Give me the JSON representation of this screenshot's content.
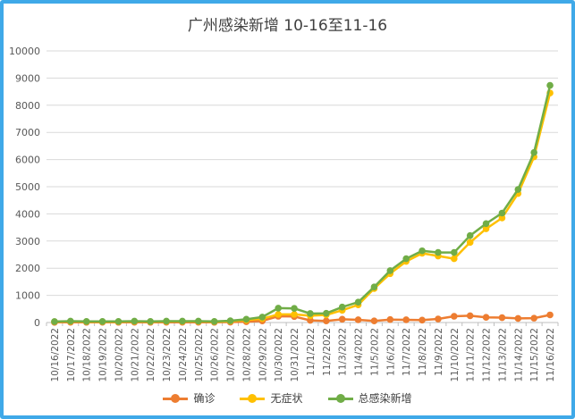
{
  "chart_data": {
    "type": "line",
    "title": "广州感染新增 10-16至11-16",
    "xlabel": "",
    "ylabel": "",
    "ylim": [
      0,
      10000
    ],
    "yticks": [
      0,
      1000,
      2000,
      3000,
      4000,
      5000,
      6000,
      7000,
      8000,
      9000,
      10000
    ],
    "grid": true,
    "legend_position": "bottom",
    "categories": [
      "10/16/2022",
      "10/17/2022",
      "10/18/2022",
      "10/19/2022",
      "10/20/2022",
      "10/21/2022",
      "10/22/2022",
      "10/23/2022",
      "10/24/2022",
      "10/25/2022",
      "10/26/2022",
      "10/27/2022",
      "10/28/2022",
      "10/29/2022",
      "10/30/2022",
      "10/31/2022",
      "11/1/2022",
      "11/2/2022",
      "11/3/2022",
      "11/4/2022",
      "11/5/2022",
      "11/6/2022",
      "11/7/2022",
      "11/8/2022",
      "11/9/2022",
      "11/10/2022",
      "11/11/2022",
      "11/12/2022",
      "11/13/2022",
      "11/14/2022",
      "11/15/2022",
      "11/16/2022"
    ],
    "series": [
      {
        "name": "确诊",
        "color": "#ed7d31",
        "values": [
          5,
          10,
          8,
          10,
          8,
          10,
          8,
          10,
          10,
          10,
          8,
          15,
          30,
          60,
          230,
          220,
          80,
          60,
          120,
          100,
          60,
          110,
          100,
          90,
          130,
          230,
          250,
          190,
          180,
          150,
          160,
          280
        ]
      },
      {
        "name": "无症状",
        "color": "#ffc000",
        "values": [
          30,
          40,
          30,
          30,
          30,
          40,
          30,
          40,
          40,
          40,
          30,
          50,
          90,
          140,
          300,
          300,
          250,
          280,
          450,
          650,
          1250,
          1800,
          2250,
          2550,
          2450,
          2350,
          2950,
          3450,
          3850,
          4750,
          6100,
          8450
        ]
      },
      {
        "name": "总感染新增",
        "color": "#70ad47",
        "values": [
          35,
          50,
          40,
          40,
          40,
          50,
          40,
          50,
          50,
          50,
          40,
          65,
          120,
          200,
          530,
          520,
          330,
          340,
          570,
          750,
          1310,
          1910,
          2350,
          2640,
          2580,
          2580,
          3200,
          3640,
          4030,
          4900,
          6260,
          8730
        ]
      }
    ]
  }
}
